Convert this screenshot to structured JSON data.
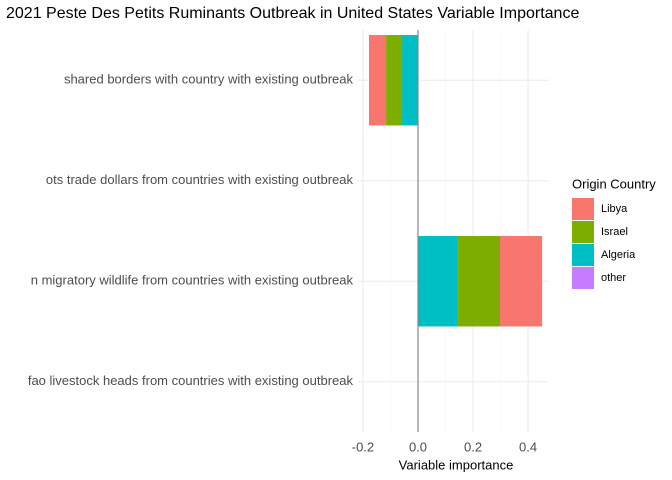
{
  "chart_data": {
    "type": "barh_stacked",
    "title": "2021 Peste Des Petits Ruminants Outbreak in United States Variable Importance",
    "x_label": "Variable importance",
    "legend_title": "Origin Country",
    "categories": [
      "shared borders with country with existing outbreak",
      "ots trade dollars from countries with existing outbreak",
      "n migratory wildlife from countries with existing outbreak",
      "fao livestock heads from countries with existing outbreak"
    ],
    "series": [
      {
        "name": "Libya",
        "color": "#F8766D",
        "values": [
          -0.062,
          0,
          0.153,
          0
        ]
      },
      {
        "name": "Israel",
        "color": "#7CAE00",
        "values": [
          -0.058,
          0,
          0.153,
          0
        ]
      },
      {
        "name": "Algeria",
        "color": "#00BFC4",
        "values": [
          -0.058,
          -0.001,
          0.145,
          0
        ]
      },
      {
        "name": "other",
        "color": "#C77CFF",
        "values": [
          0,
          0,
          0,
          0
        ]
      }
    ],
    "stack_order": [
      "other",
      "Algeria",
      "Israel",
      "Libya"
    ],
    "xlim": [
      -0.218,
      0.476
    ],
    "xticks": [
      -0.2,
      {
        "value": 0,
        "label": "0.0"
      },
      0.2,
      0.4
    ],
    "x_minor_ticks": [
      -0.1,
      0.1,
      0.3
    ],
    "grid": true,
    "legend": "right"
  }
}
